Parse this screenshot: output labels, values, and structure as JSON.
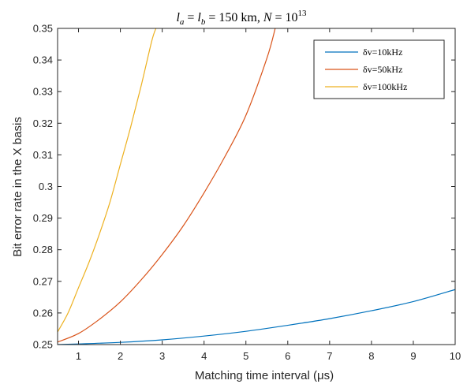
{
  "chart_data": {
    "type": "line",
    "title": "l_a = l_b = 150 km, N = 10^13",
    "xlabel": "Matching time interval (μs)",
    "ylabel": "Bit error rate in the X basis",
    "xlim": [
      0.5,
      10
    ],
    "ylim": [
      0.25,
      0.35
    ],
    "xticks": [
      1,
      2,
      3,
      4,
      5,
      6,
      7,
      8,
      9,
      10
    ],
    "yticks": [
      0.25,
      0.26,
      0.27,
      0.28,
      0.29,
      0.3,
      0.31,
      0.32,
      0.33,
      0.34,
      0.35
    ],
    "xtick_labels": [
      "1",
      "2",
      "3",
      "4",
      "5",
      "6",
      "7",
      "8",
      "9",
      "10"
    ],
    "ytick_labels": [
      "0.25",
      "0.26",
      "0.27",
      "0.28",
      "0.29",
      "0.3",
      "0.31",
      "0.32",
      "0.33",
      "0.34",
      "0.35"
    ],
    "grid": false,
    "legend_position": "top-right",
    "series": [
      {
        "name": "δv=10kHz",
        "color": "#0072BD",
        "x": [
          0.5,
          1,
          2,
          3,
          4,
          5,
          6,
          7,
          8,
          9,
          10
        ],
        "y": [
          0.25,
          0.2502,
          0.2507,
          0.2515,
          0.2527,
          0.2542,
          0.2561,
          0.2582,
          0.2607,
          0.2636,
          0.2674
        ]
      },
      {
        "name": "δv=50kHz",
        "color": "#D95319",
        "x": [
          0.5,
          1,
          1.5,
          2,
          2.5,
          3,
          3.5,
          4,
          4.5,
          5,
          5.5,
          5.7
        ],
        "y": [
          0.2508,
          0.2535,
          0.258,
          0.2635,
          0.2705,
          0.2785,
          0.2875,
          0.298,
          0.3095,
          0.3225,
          0.3405,
          0.35
        ]
      },
      {
        "name": "δv=100kHz",
        "color": "#EDB120",
        "x": [
          0.5,
          0.75,
          1,
          1.25,
          1.5,
          1.75,
          2,
          2.25,
          2.5,
          2.75,
          2.85
        ],
        "y": [
          0.254,
          0.26,
          0.268,
          0.276,
          0.285,
          0.295,
          0.307,
          0.319,
          0.332,
          0.346,
          0.35
        ]
      }
    ]
  }
}
